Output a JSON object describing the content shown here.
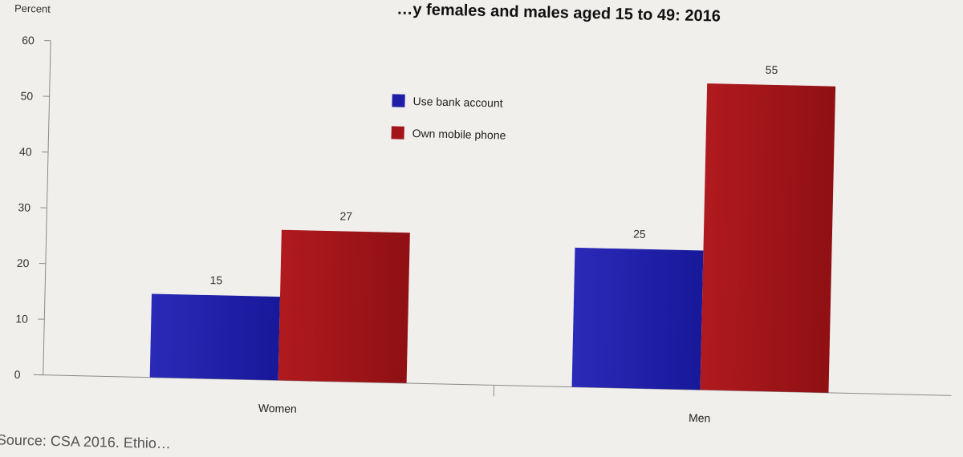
{
  "chart_data": {
    "type": "bar",
    "title": "…y females and males aged 15 to 49: 2016",
    "ylabel": "Percent",
    "xlabel": "",
    "ylim": [
      0,
      60
    ],
    "yticks": [
      0,
      10,
      20,
      30,
      40,
      50,
      60
    ],
    "categories": [
      "Women",
      "Men"
    ],
    "series": [
      {
        "name": "Use bank account",
        "values": [
          15,
          25
        ],
        "color": "#1e1ea8"
      },
      {
        "name": "Own mobile phone",
        "values": [
          27,
          55
        ],
        "color": "#a31418"
      }
    ],
    "legend_position": "top-center",
    "grid": false,
    "source": "Source: CSA 2016. Ethio…"
  }
}
